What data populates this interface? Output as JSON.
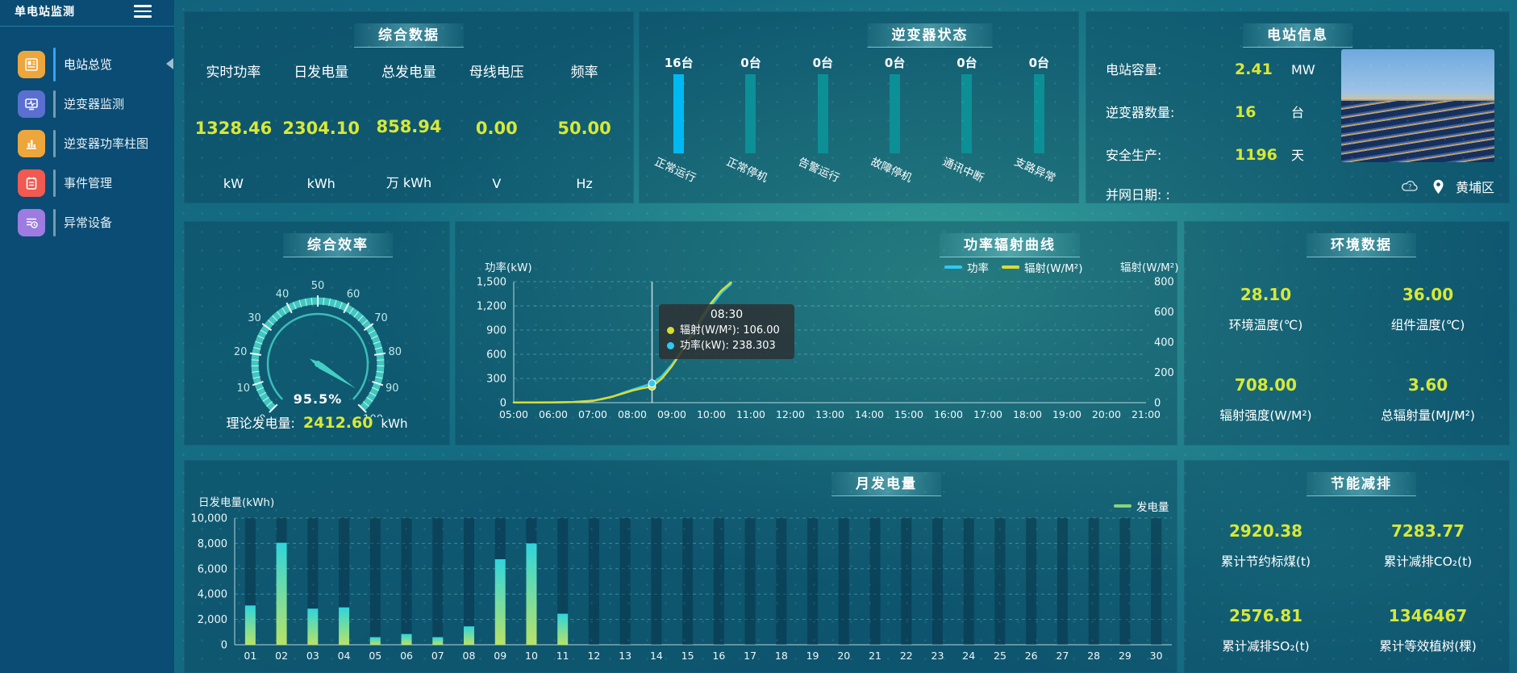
{
  "app_title": "单电站监测",
  "location": "黄埔区",
  "colors": {
    "accent_yellow": "#d7e837",
    "power_line": "#2fc9f2",
    "radiation_line": "#d9dc35",
    "bar_active_blue": "#00b9f2",
    "bar_idle_teal": "#0d8f96",
    "gauge_teal": "#43cfc4",
    "monthly_bar_top": "#2fd5dc",
    "monthly_bar_bottom": "#b8e266",
    "legend_green": "#8bd37b",
    "sidebar_blue": "#0a4c74"
  },
  "sidebar": {
    "title": "单电站监测",
    "items": [
      {
        "label": "电站总览",
        "active": true,
        "icon": "news-icon",
        "color": "#eda63c"
      },
      {
        "label": "逆变器监测",
        "active": false,
        "icon": "monitor-icon",
        "color": "#5a6fd0"
      },
      {
        "label": "逆变器功率柱图",
        "active": false,
        "icon": "bar-chart-icon",
        "color": "#eda63c"
      },
      {
        "label": "事件管理",
        "active": false,
        "icon": "notebook-icon",
        "color": "#f05a50"
      },
      {
        "label": "异常设备",
        "active": false,
        "icon": "device-list-icon",
        "color": "#9d7be0"
      }
    ]
  },
  "overview": {
    "title": "综合数据",
    "metrics": [
      {
        "label": "实时功率",
        "value": "1328.46",
        "unit": "kW"
      },
      {
        "label": "日发电量",
        "value": "2304.10",
        "unit": "kWh"
      },
      {
        "label": "总发电量",
        "value": "858.94",
        "unit": "万 kWh"
      },
      {
        "label": "母线电压",
        "value": "0.00",
        "unit": "V"
      },
      {
        "label": "频率",
        "value": "50.00",
        "unit": "Hz"
      }
    ]
  },
  "inverter_status": {
    "title": "逆变器状态",
    "items": [
      {
        "count": "16台",
        "label": "正常运行",
        "active": true
      },
      {
        "count": "0台",
        "label": "正常停机",
        "active": false
      },
      {
        "count": "0台",
        "label": "告警运行",
        "active": false
      },
      {
        "count": "0台",
        "label": "故障停机",
        "active": false
      },
      {
        "count": "0台",
        "label": "通讯中断",
        "active": false
      },
      {
        "count": "0台",
        "label": "支路异常",
        "active": false
      }
    ]
  },
  "station_info": {
    "title": "电站信息",
    "rows": [
      {
        "label": "电站容量:",
        "value": "2.41",
        "unit": "MW"
      },
      {
        "label": "逆变器数量:",
        "value": "16",
        "unit": "台"
      },
      {
        "label": "安全生产:",
        "value": "1196",
        "unit": "天"
      },
      {
        "label": "并网日期:  :",
        "value": "",
        "unit": ""
      }
    ]
  },
  "efficiency": {
    "title": "综合效率",
    "theory_label": "理论发电量:",
    "theory_value": "2412.60",
    "theory_unit": "kWh"
  },
  "power_curve": {
    "title": "功率辐射曲线"
  },
  "environment": {
    "title": "环境数据",
    "metrics": [
      {
        "value": "28.10",
        "label": "环境温度(℃)"
      },
      {
        "value": "36.00",
        "label": "组件温度(℃)"
      },
      {
        "value": "708.00",
        "label": "辐射强度(W/M²)"
      },
      {
        "value": "3.60",
        "label": "总辐射量(MJ/M²)"
      }
    ]
  },
  "monthly": {
    "title": "月发电量"
  },
  "energy_saving": {
    "title": "节能减排",
    "metrics": [
      {
        "value": "2920.38",
        "label": "累计节约标煤(t)"
      },
      {
        "value": "7283.77",
        "label": "累计减排CO₂(t)"
      },
      {
        "value": "2576.81",
        "label": "累计减排SO₂(t)"
      },
      {
        "value": "1346467",
        "label": "累计等效植树(棵)"
      }
    ]
  },
  "chart_data": [
    {
      "id": "inverter_status_bars",
      "type": "bar",
      "title": "逆变器状态",
      "categories": [
        "正常运行",
        "正常停机",
        "告警运行",
        "故障停机",
        "通讯中断",
        "支路异常"
      ],
      "values": [
        16,
        0,
        0,
        0,
        0,
        0
      ],
      "unit": "台"
    },
    {
      "id": "efficiency_gauge",
      "type": "gauge",
      "title": "综合效率",
      "value": 95.5,
      "label": "95.5%",
      "min": 0,
      "max": 100,
      "tick_labels": [
        "0",
        "10",
        "20",
        "30",
        "40",
        "50",
        "60",
        "70",
        "80",
        "90",
        "100"
      ]
    },
    {
      "id": "power_radiation",
      "type": "line",
      "title": "功率辐射曲线",
      "x_ticks": [
        "05:00",
        "06:00",
        "07:00",
        "08:00",
        "09:00",
        "10:00",
        "11:00",
        "12:00",
        "13:00",
        "14:00",
        "15:00",
        "16:00",
        "17:00",
        "18:00",
        "19:00",
        "20:00",
        "21:00"
      ],
      "x_hours": [
        5,
        21
      ],
      "left_axis": {
        "label": "功率(kW)",
        "max": 1500,
        "ticks": [
          0,
          300,
          600,
          900,
          1200,
          1500
        ],
        "tick_labels": [
          "0",
          "300",
          "600",
          "900",
          "1,200",
          "1,500"
        ]
      },
      "right_axis": {
        "label": "辐射(W/M²)",
        "max": 800,
        "ticks": [
          0,
          200,
          400,
          600,
          800
        ],
        "tick_labels": [
          "0",
          "200",
          "400",
          "600",
          "800"
        ]
      },
      "series": [
        {
          "name": "功率",
          "axis": "left",
          "color": "#2fc9f2",
          "points": [
            [
              5,
              2
            ],
            [
              5.5,
              2
            ],
            [
              6,
              3
            ],
            [
              6.5,
              8
            ],
            [
              7,
              25
            ],
            [
              7.25,
              45
            ],
            [
              7.5,
              75
            ],
            [
              7.75,
              120
            ],
            [
              8,
              160
            ],
            [
              8.25,
              200
            ],
            [
              8.5,
              238.3
            ],
            [
              8.75,
              330
            ],
            [
              9,
              470
            ],
            [
              9.25,
              640
            ],
            [
              9.5,
              830
            ],
            [
              9.75,
              1020
            ],
            [
              10,
              1200
            ],
            [
              10.25,
              1360
            ],
            [
              10.5,
              1470
            ]
          ]
        },
        {
          "name": "辐射(W/M²)",
          "axis": "right",
          "color": "#d9dc35",
          "points": [
            [
              5,
              1
            ],
            [
              5.5,
              1
            ],
            [
              6,
              2
            ],
            [
              6.5,
              4
            ],
            [
              7,
              12
            ],
            [
              7.5,
              40
            ],
            [
              7.75,
              60
            ],
            [
              8,
              80
            ],
            [
              8.25,
              95
            ],
            [
              8.5,
              106
            ],
            [
              8.75,
              160
            ],
            [
              9,
              240
            ],
            [
              9.25,
              340
            ],
            [
              9.5,
              450
            ],
            [
              9.75,
              560
            ],
            [
              10,
              660
            ],
            [
              10.25,
              740
            ],
            [
              10.5,
              795
            ]
          ]
        }
      ],
      "tooltip": {
        "time": "08:30",
        "pointer_hour": 8.5,
        "rows": [
          {
            "text": "辐射(W/M²): 106.00",
            "value": 106.0,
            "color": "#d9dc35",
            "axis": "right"
          },
          {
            "text": "功率(kW): 238.303",
            "value": 238.303,
            "color": "#2fc9f2",
            "axis": "left"
          }
        ]
      }
    },
    {
      "id": "monthly_energy",
      "type": "bar",
      "title": "月发电量",
      "ylabel": "日发电量(kWh)",
      "legend": "发电量",
      "categories": [
        "01",
        "02",
        "03",
        "04",
        "05",
        "06",
        "07",
        "08",
        "09",
        "10",
        "11",
        "12",
        "13",
        "14",
        "15",
        "16",
        "17",
        "18",
        "19",
        "20",
        "21",
        "22",
        "23",
        "24",
        "25",
        "26",
        "27",
        "28",
        "29",
        "30"
      ],
      "values": [
        3100,
        8050,
        2850,
        2950,
        600,
        850,
        600,
        1450,
        6750,
        8000,
        2450,
        0,
        0,
        0,
        0,
        0,
        0,
        0,
        0,
        0,
        0,
        0,
        0,
        0,
        0,
        0,
        0,
        0,
        0,
        0
      ],
      "ylim": [
        0,
        10000
      ],
      "yticks": [
        0,
        2000,
        4000,
        6000,
        8000,
        10000
      ],
      "ytick_labels": [
        "0",
        "2,000",
        "4,000",
        "6,000",
        "8,000",
        "10,000"
      ]
    }
  ]
}
